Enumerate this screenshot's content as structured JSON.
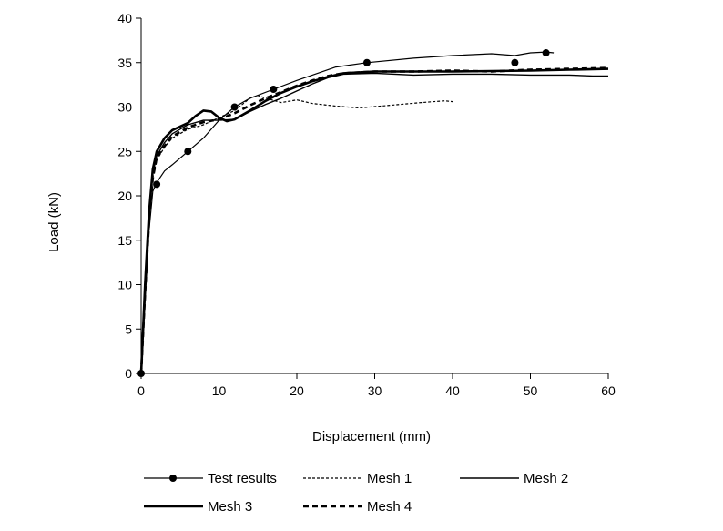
{
  "chart_data": {
    "type": "line",
    "title": "",
    "xlabel": "Displacement (mm)",
    "ylabel": "Load  (kN)",
    "xlim": [
      0,
      60
    ],
    "ylim": [
      0,
      40
    ],
    "x_ticks": [
      "0",
      "10",
      "20",
      "30",
      "40",
      "50",
      "60"
    ],
    "y_ticks": [
      "0",
      "5",
      "10",
      "15",
      "20",
      "25",
      "30",
      "35",
      "40"
    ],
    "grid": false,
    "legend_position": "bottom",
    "series": [
      {
        "name": "Test results",
        "style": "solid-markers",
        "points": [
          [
            0,
            0
          ],
          [
            0.5,
            8
          ],
          [
            1,
            16
          ],
          [
            1.5,
            20.5
          ],
          [
            2,
            21.5
          ],
          [
            3,
            22.8
          ],
          [
            4,
            23.5
          ],
          [
            6,
            25
          ],
          [
            8,
            26.5
          ],
          [
            10,
            28.5
          ],
          [
            12,
            30
          ],
          [
            14,
            31
          ],
          [
            17,
            32
          ],
          [
            20,
            33
          ],
          [
            25,
            34.5
          ],
          [
            29,
            35
          ],
          [
            35,
            35.5
          ],
          [
            40,
            35.8
          ],
          [
            45,
            36
          ],
          [
            48,
            35.8
          ],
          [
            50,
            36.1
          ],
          [
            52,
            36.2
          ],
          [
            53,
            36.1
          ]
        ],
        "markers": [
          [
            0,
            0
          ],
          [
            2,
            21.3
          ],
          [
            6,
            25
          ],
          [
            12,
            30
          ],
          [
            17,
            32
          ],
          [
            29,
            35
          ],
          [
            48,
            35
          ],
          [
            52,
            36.1
          ]
        ]
      },
      {
        "name": "Mesh 1",
        "style": "dotted",
        "points": [
          [
            0,
            0
          ],
          [
            0.5,
            9
          ],
          [
            1,
            17
          ],
          [
            1.5,
            22
          ],
          [
            2,
            24
          ],
          [
            3,
            25.5
          ],
          [
            4,
            26.5
          ],
          [
            6,
            27.5
          ],
          [
            8,
            28
          ],
          [
            10,
            28.8
          ],
          [
            12,
            29.6
          ],
          [
            14,
            31
          ],
          [
            15,
            31.3
          ],
          [
            16,
            31
          ],
          [
            18,
            30.5
          ],
          [
            20,
            30.8
          ],
          [
            22,
            30.4
          ],
          [
            25,
            30.1
          ],
          [
            28,
            29.9
          ],
          [
            32,
            30.2
          ],
          [
            36,
            30.5
          ],
          [
            39,
            30.7
          ],
          [
            40,
            30.6
          ]
        ]
      },
      {
        "name": "Mesh 2",
        "style": "solid",
        "points": [
          [
            0,
            0
          ],
          [
            0.5,
            9.5
          ],
          [
            1,
            17.5
          ],
          [
            1.5,
            22.5
          ],
          [
            2,
            24.5
          ],
          [
            3,
            26
          ],
          [
            4,
            27
          ],
          [
            6,
            28
          ],
          [
            8,
            28.5
          ],
          [
            10,
            28.5
          ],
          [
            12,
            28.6
          ],
          [
            14,
            29.5
          ],
          [
            16,
            30.3
          ],
          [
            18,
            31
          ],
          [
            20,
            31.8
          ],
          [
            22,
            32.6
          ],
          [
            24,
            33.3
          ],
          [
            26,
            33.7
          ],
          [
            30,
            33.8
          ],
          [
            35,
            33.6
          ],
          [
            40,
            33.7
          ],
          [
            45,
            33.7
          ],
          [
            50,
            33.6
          ],
          [
            55,
            33.6
          ],
          [
            58,
            33.5
          ],
          [
            60,
            33.5
          ]
        ]
      },
      {
        "name": "Mesh 3",
        "style": "bold-solid",
        "points": [
          [
            0,
            0
          ],
          [
            0.5,
            10
          ],
          [
            1,
            18
          ],
          [
            1.5,
            23
          ],
          [
            2,
            25
          ],
          [
            3,
            26.5
          ],
          [
            4,
            27.4
          ],
          [
            6,
            28.2
          ],
          [
            7,
            29
          ],
          [
            8,
            29.6
          ],
          [
            9,
            29.5
          ],
          [
            10,
            28.8
          ],
          [
            11,
            28.4
          ],
          [
            12,
            28.6
          ],
          [
            14,
            29.6
          ],
          [
            16,
            30.7
          ],
          [
            18,
            31.6
          ],
          [
            20,
            32.3
          ],
          [
            22,
            32.9
          ],
          [
            24,
            33.4
          ],
          [
            26,
            33.8
          ],
          [
            30,
            34
          ],
          [
            40,
            34
          ],
          [
            50,
            34.1
          ],
          [
            55,
            34.2
          ],
          [
            60,
            34.3
          ]
        ]
      },
      {
        "name": "Mesh 4",
        "style": "dashed",
        "points": [
          [
            0,
            0
          ],
          [
            0.5,
            9
          ],
          [
            1,
            17
          ],
          [
            1.5,
            22
          ],
          [
            2,
            24.3
          ],
          [
            3,
            25.6
          ],
          [
            4,
            26.7
          ],
          [
            6,
            27.7
          ],
          [
            8,
            28.3
          ],
          [
            10,
            28.6
          ],
          [
            12,
            29.3
          ],
          [
            14,
            30.2
          ],
          [
            16,
            31
          ],
          [
            18,
            31.7
          ],
          [
            20,
            32.4
          ],
          [
            22,
            33
          ],
          [
            24,
            33.5
          ],
          [
            26,
            33.8
          ],
          [
            30,
            34
          ],
          [
            35,
            34
          ],
          [
            40,
            34.1
          ],
          [
            45,
            34
          ],
          [
            50,
            34.2
          ],
          [
            55,
            34.3
          ],
          [
            60,
            34.4
          ]
        ]
      }
    ]
  }
}
